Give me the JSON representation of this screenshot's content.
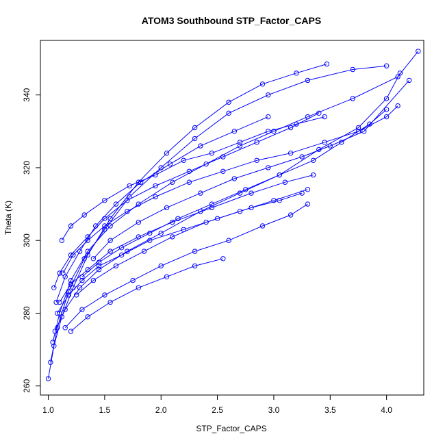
{
  "chart_data": {
    "type": "line",
    "title": "ATOM3 Southbound STP_Factor_CAPS",
    "xlabel": "STP_Factor_CAPS",
    "ylabel": "Theta (K)",
    "xlim": [
      0.93,
      4.33
    ],
    "ylim": [
      257.5,
      355
    ],
    "xticks": [
      1.0,
      1.5,
      2.0,
      2.5,
      3.0,
      3.5,
      4.0
    ],
    "xtick_labels": [
      "1.0",
      "1.5",
      "2.0",
      "2.5",
      "3.0",
      "3.5",
      "4.0"
    ],
    "yticks": [
      260,
      280,
      300,
      320,
      340
    ],
    "ytick_labels": [
      "260",
      "280",
      "300",
      "320",
      "340"
    ],
    "marker": "open-circle",
    "color": "#0000ff",
    "grid": false,
    "series": [
      {
        "x": [
          1.0,
          1.05,
          1.12,
          1.22,
          1.35,
          1.55,
          1.8,
          2.05,
          2.3,
          2.6,
          2.9,
          3.2,
          3.47
        ],
        "y": [
          262,
          271,
          279,
          287,
          296,
          306,
          316,
          324,
          331,
          338,
          343,
          346,
          348.5
        ]
      },
      {
        "x": [
          1.02,
          1.08,
          1.18,
          1.32,
          1.5,
          1.72,
          2.0,
          2.3,
          2.6,
          2.95,
          3.3,
          3.7,
          4.0
        ],
        "y": [
          266.5,
          276,
          286,
          295,
          303,
          312,
          320,
          328,
          335,
          340,
          344,
          347,
          348
        ]
      },
      {
        "x": [
          1.04,
          1.1,
          1.2,
          1.35,
          1.55,
          1.8,
          2.1,
          2.4,
          2.7,
          3.0,
          3.3,
          3.7,
          4.1,
          4.28
        ],
        "y": [
          272,
          280,
          289,
          297,
          304,
          310,
          316,
          321,
          326,
          330,
          334,
          339,
          345,
          352
        ]
      },
      {
        "x": [
          1.06,
          1.15,
          1.28,
          1.45,
          1.7,
          2.0,
          2.35,
          2.7,
          3.05,
          3.4,
          3.75,
          4.0,
          4.12
        ],
        "y": [
          275,
          281,
          287,
          292,
          297,
          302,
          308,
          313,
          318,
          325,
          331,
          339,
          346
        ]
      },
      {
        "x": [
          1.1,
          1.2,
          1.35,
          1.55,
          1.8,
          2.1,
          2.45,
          2.8,
          3.1,
          3.35
        ],
        "y": [
          283,
          288,
          292,
          297,
          301,
          305,
          309,
          313,
          316,
          318
        ]
      },
      {
        "x": [
          1.12,
          1.2,
          1.32,
          1.5,
          1.72,
          1.95,
          2.2,
          2.45,
          2.7,
          2.95,
          3.2,
          3.45
        ],
        "y": [
          300,
          304,
          307,
          311,
          315,
          318,
          322,
          324,
          327,
          330,
          332,
          334
        ]
      },
      {
        "x": [
          1.08,
          1.18,
          1.3,
          1.45,
          1.65,
          1.9,
          2.2,
          2.5,
          2.8,
          3.05,
          3.25
        ],
        "y": [
          280,
          285,
          289,
          293,
          296,
          300,
          303,
          306,
          309,
          311,
          313
        ]
      },
      {
        "x": [
          1.15,
          1.3,
          1.5,
          1.75,
          2.0,
          2.3,
          2.6,
          2.9,
          3.15,
          3.3
        ],
        "y": [
          276,
          281,
          285,
          289,
          293,
          297,
          300,
          304,
          307,
          310
        ]
      },
      {
        "x": [
          1.2,
          1.35,
          1.55,
          1.8,
          2.05,
          2.3,
          2.55
        ],
        "y": [
          275,
          279,
          283,
          287,
          290,
          293,
          295
        ]
      },
      {
        "x": [
          1.13,
          1.22,
          1.35,
          1.5,
          1.7,
          1.95,
          2.25,
          2.55,
          2.85,
          3.15,
          3.45,
          3.75,
          4.0,
          4.1
        ],
        "y": [
          291,
          296,
          300,
          304,
          308,
          312,
          316,
          319,
          322,
          324,
          327,
          330,
          334,
          337
        ]
      },
      {
        "x": [
          1.05,
          1.1,
          1.2,
          1.35,
          1.5,
          1.7,
          1.95,
          2.25,
          2.55,
          2.85,
          3.15,
          3.4
        ],
        "y": [
          287,
          291,
          296,
          301,
          306,
          311,
          315,
          319,
          323,
          327,
          331,
          335
        ]
      },
      {
        "x": [
          1.25,
          1.4,
          1.6,
          1.85,
          2.1,
          2.4,
          2.7,
          3.0,
          3.3
        ],
        "y": [
          285,
          289,
          293,
          297,
          301,
          305,
          308,
          311,
          314
        ]
      },
      {
        "x": [
          1.07,
          1.15,
          1.28,
          1.42,
          1.6,
          1.82,
          2.08,
          2.35,
          2.65,
          2.95
        ],
        "y": [
          283,
          290,
          297,
          304,
          310,
          316,
          321,
          326,
          330,
          334
        ]
      },
      {
        "x": [
          1.3,
          1.45,
          1.65,
          1.9,
          2.15,
          2.45,
          2.75,
          3.05,
          3.35,
          3.6,
          3.85,
          4.0
        ],
        "y": [
          290,
          294,
          298,
          302,
          306,
          310,
          314,
          318,
          322,
          327,
          332,
          336
        ]
      },
      {
        "x": [
          1.4,
          1.55,
          1.8,
          2.05,
          2.35,
          2.65,
          2.95,
          3.25,
          3.5,
          3.8,
          4.2
        ],
        "y": [
          295,
          300,
          305,
          309,
          313,
          317,
          320,
          323,
          326,
          330,
          344
        ]
      }
    ]
  }
}
